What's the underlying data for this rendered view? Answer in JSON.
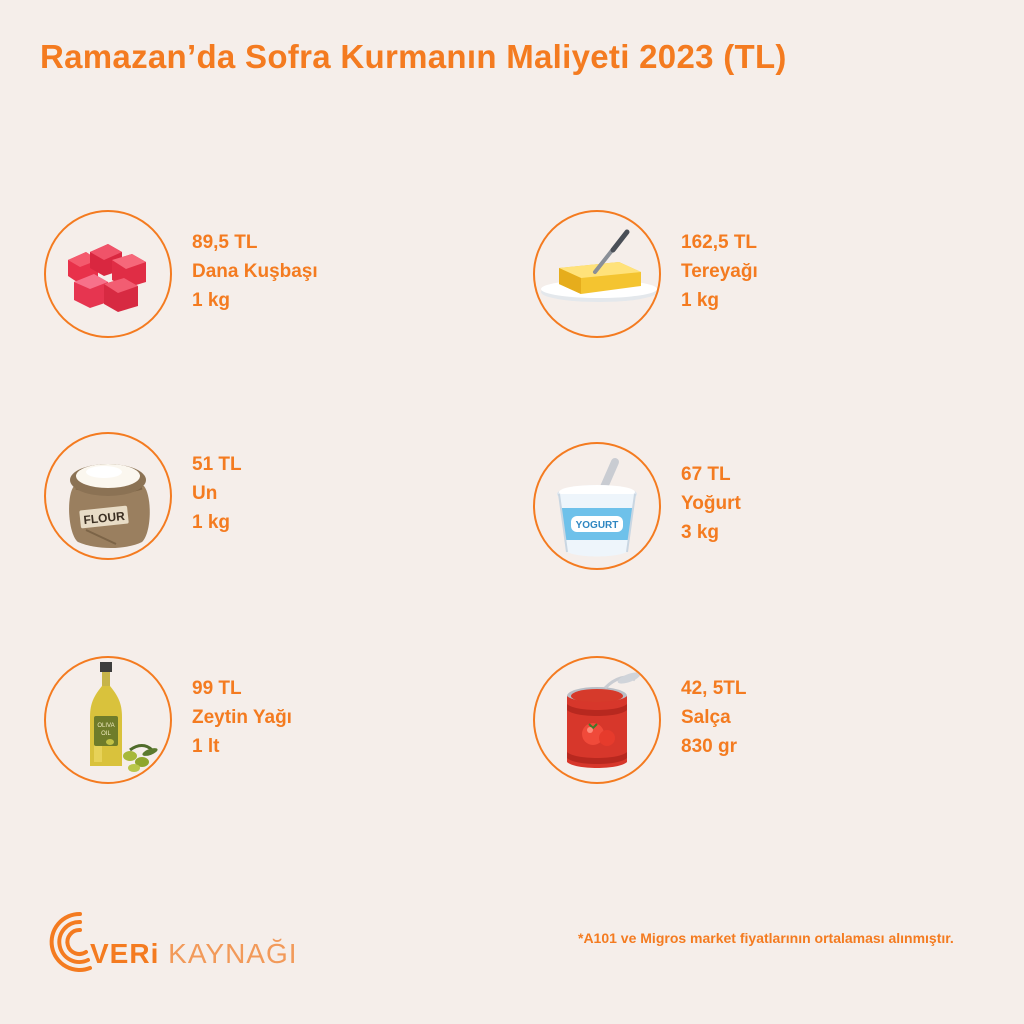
{
  "title": "Ramazan’da Sofra Kurmanın Maliyeti 2023 (TL)",
  "accent_color": "#f47b20",
  "background_color": "#f5eeea",
  "items": [
    {
      "price": "89,5 TL",
      "name": "Dana Kuşbaşı",
      "qty": "1 kg",
      "icon": "beef-cubes-icon"
    },
    {
      "price": "162,5 TL",
      "name": "Tereyağı",
      "qty": "1 kg",
      "icon": "butter-icon"
    },
    {
      "price": "51 TL",
      "name": "Un",
      "qty": "1 kg",
      "icon": "flour-sack-icon",
      "label": "FLOUR"
    },
    {
      "price": "67 TL",
      "name": "Yoğurt",
      "qty": "3 kg",
      "icon": "yogurt-cup-icon",
      "label": "YOGURT"
    },
    {
      "price": "99 TL",
      "name": "Zeytin Yağı",
      "qty": "1 lt",
      "icon": "olive-oil-bottle-icon",
      "label_top": "OLIVA",
      "label_bottom": "OIL"
    },
    {
      "price": "42, 5TL",
      "name": "Salça",
      "qty": "830 gr",
      "icon": "tomato-paste-can-icon"
    }
  ],
  "footnote": "*A101 ve Migros market fiyatlarının ortalaması alınmıştır.",
  "logo": {
    "part1": "VERi",
    "part2": "KAYNAĞI"
  }
}
